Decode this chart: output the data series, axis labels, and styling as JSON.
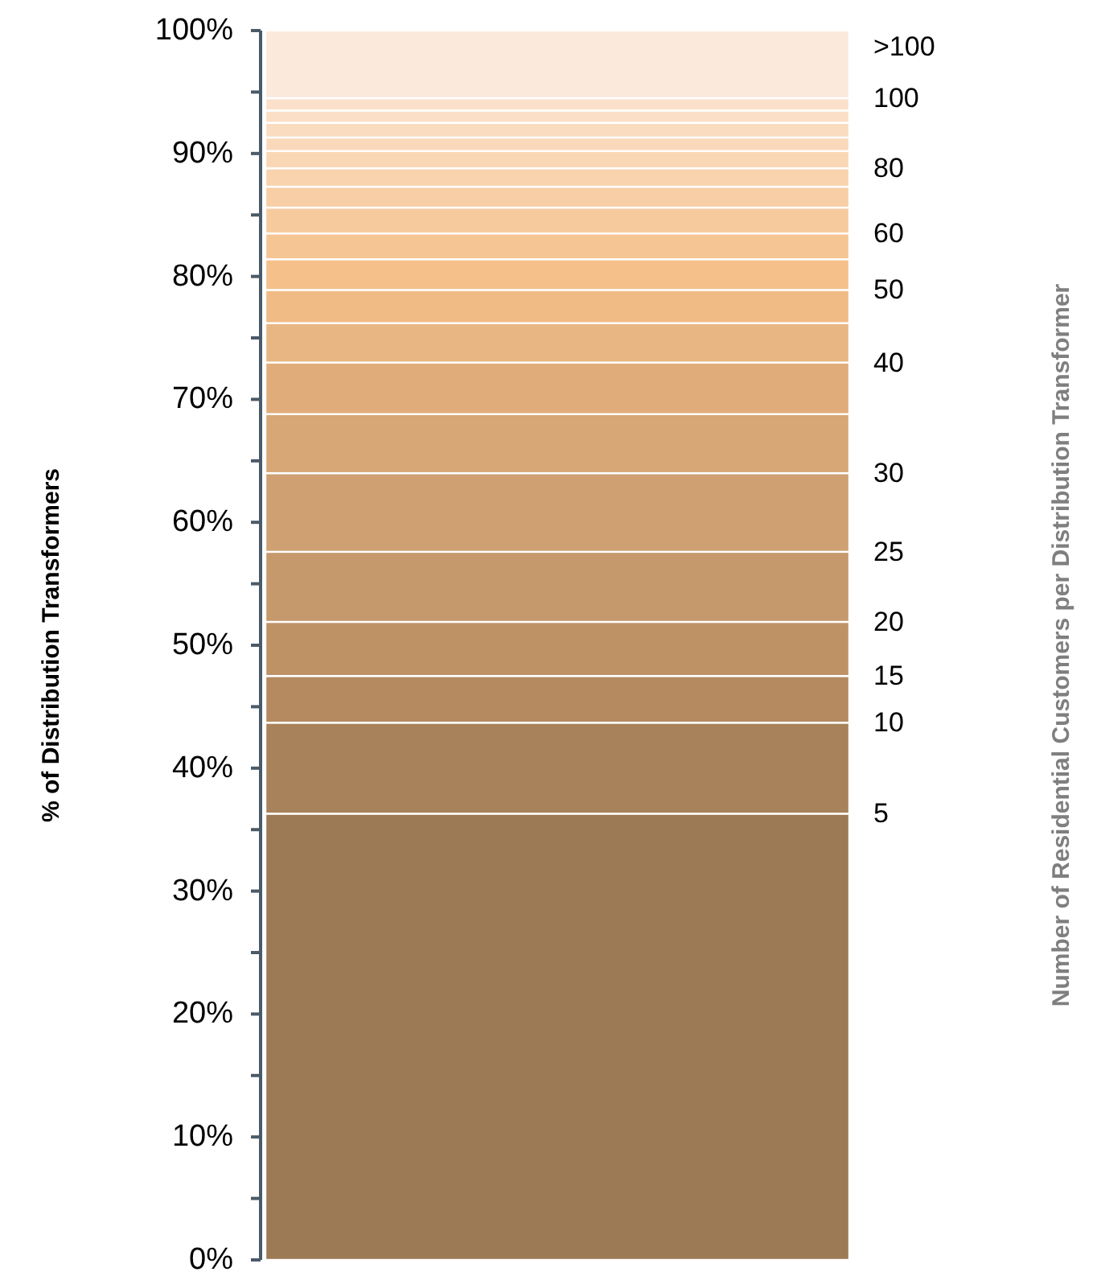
{
  "chart_data": {
    "type": "bar",
    "stacked": true,
    "categories": [
      null
    ],
    "ylabel": "% of Distribution Transformers",
    "annotations": [
      "Number of Residential Customers per Distribution Transformer"
    ],
    "ylim": [
      0,
      100
    ],
    "yticks": [
      {
        "value": 0,
        "label": "0%"
      },
      {
        "value": 5,
        "label": null
      },
      {
        "value": 10,
        "label": "10%"
      },
      {
        "value": 15,
        "label": null
      },
      {
        "value": 20,
        "label": "20%"
      },
      {
        "value": 25,
        "label": null
      },
      {
        "value": 30,
        "label": "30%"
      },
      {
        "value": 35,
        "label": null
      },
      {
        "value": 40,
        "label": "40%"
      },
      {
        "value": 45,
        "label": null
      },
      {
        "value": 50,
        "label": "50%"
      },
      {
        "value": 55,
        "label": null
      },
      {
        "value": 60,
        "label": "60%"
      },
      {
        "value": 65,
        "label": null
      },
      {
        "value": 70,
        "label": "70%"
      },
      {
        "value": 75,
        "label": null
      },
      {
        "value": 80,
        "label": "80%"
      },
      {
        "value": 85,
        "label": null
      },
      {
        "value": 90,
        "label": "90%"
      },
      {
        "value": 95,
        "label": null
      },
      {
        "value": 100,
        "label": "100%"
      }
    ],
    "series": [
      {
        "name": "5",
        "color": "#9c7a55",
        "values": [
          36.3
        ]
      },
      {
        "name": "10",
        "color": "#a8825a",
        "values": [
          7.4
        ]
      },
      {
        "name": "15",
        "color": "#b58a60",
        "values": [
          3.8
        ]
      },
      {
        "name": "20",
        "color": "#bf9266",
        "values": [
          4.4
        ]
      },
      {
        "name": "25",
        "color": "#c6996c",
        "values": [
          5.7
        ]
      },
      {
        "name": "30",
        "color": "#cfa172",
        "values": [
          6.4
        ]
      },
      {
        "color": "#d7a775",
        "values": [
          4.8
        ]
      },
      {
        "name": "40",
        "color": "#e0ad7a",
        "values": [
          4.2
        ]
      },
      {
        "color": "#e8b682",
        "values": [
          3.2
        ]
      },
      {
        "name": "50",
        "color": "#f0bb84",
        "values": [
          2.7
        ]
      },
      {
        "color": "#f5c08a",
        "values": [
          2.5
        ]
      },
      {
        "name": "60",
        "color": "#f6c594",
        "values": [
          2.1
        ]
      },
      {
        "color": "#f7ca9e",
        "values": [
          2.1
        ]
      },
      {
        "color": "#f8cea6",
        "values": [
          1.7
        ]
      },
      {
        "name": "80",
        "color": "#f9d3ad",
        "values": [
          1.5
        ]
      },
      {
        "color": "#f9d7b5",
        "values": [
          1.4
        ]
      },
      {
        "color": "#fad9bb",
        "values": [
          1.1
        ]
      },
      {
        "color": "#fadcc1",
        "values": [
          1.2
        ]
      },
      {
        "color": "#fbdfc6",
        "values": [
          1.0
        ]
      },
      {
        "name": "100",
        "color": "#fbe1cb",
        "values": [
          1.0
        ]
      },
      {
        "name": ">100",
        "color": "#fbe9dc",
        "values": [
          5.5
        ]
      }
    ]
  }
}
